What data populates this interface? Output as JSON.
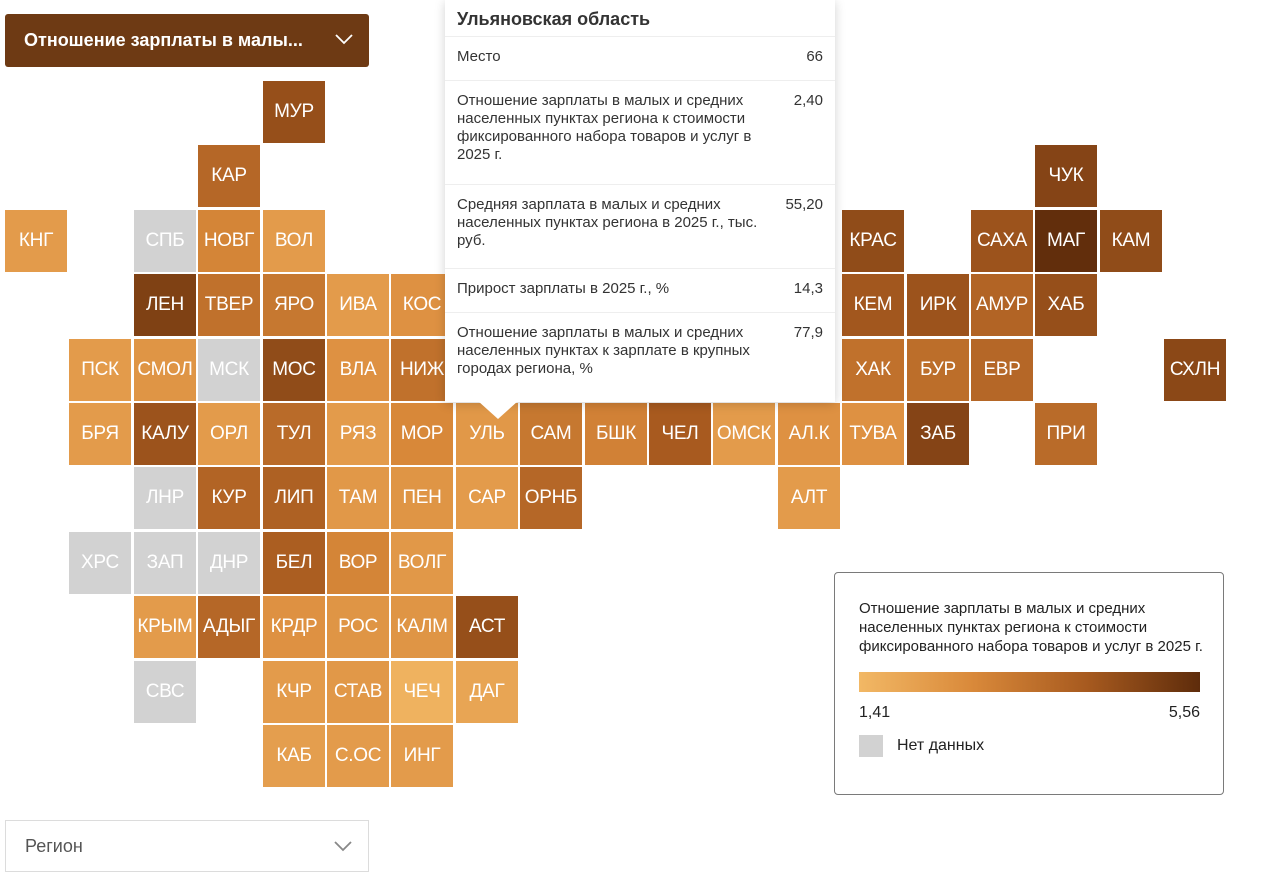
{
  "metric_selector": {
    "label": "Отношение зарплаты в малы...",
    "icon": "chevron-down-icon"
  },
  "region_selector": {
    "label": "Регион",
    "icon": "chevron-down-icon"
  },
  "colors": {
    "low": "#f2b865",
    "high": "#5e2c0b",
    "no_data": "#d2d2d2"
  },
  "map": {
    "tiles": [
      {
        "label": "МУР",
        "col": 4,
        "row": 0,
        "value": 4.6
      },
      {
        "label": "КАР",
        "col": 3,
        "row": 1,
        "value": 3.9
      },
      {
        "label": "ЧУК",
        "col": 16,
        "row": 1,
        "value": 4.9
      },
      {
        "label": "КНГ",
        "col": 0,
        "row": 2,
        "value": 2.3
      },
      {
        "label": "СПБ",
        "col": 2,
        "row": 2,
        "value": null
      },
      {
        "label": "НОВГ",
        "col": 3,
        "row": 2,
        "value": 3.0
      },
      {
        "label": "ВОЛ",
        "col": 4,
        "row": 2,
        "value": 2.3
      },
      {
        "label": "КРАС",
        "col": 13,
        "row": 2,
        "value": 4.7
      },
      {
        "label": "САХА",
        "col": 15,
        "row": 2,
        "value": 4.5
      },
      {
        "label": "МАГ",
        "col": 16,
        "row": 2,
        "value": 5.5
      },
      {
        "label": "КАМ",
        "col": 17,
        "row": 2,
        "value": 4.7
      },
      {
        "label": "ЛЕН",
        "col": 2,
        "row": 3,
        "value": 5.0
      },
      {
        "label": "ТВЕР",
        "col": 3,
        "row": 3,
        "value": 3.6
      },
      {
        "label": "ЯРО",
        "col": 4,
        "row": 3,
        "value": 3.4
      },
      {
        "label": "ИВА",
        "col": 5,
        "row": 3,
        "value": 2.3
      },
      {
        "label": "КОС",
        "col": 6,
        "row": 3,
        "value": 2.6
      },
      {
        "label": "КЕМ",
        "col": 13,
        "row": 3,
        "value": 4.4
      },
      {
        "label": "ИРК",
        "col": 14,
        "row": 3,
        "value": 4.5
      },
      {
        "label": "АМУР",
        "col": 15,
        "row": 3,
        "value": 4.0
      },
      {
        "label": "ХАБ",
        "col": 16,
        "row": 3,
        "value": 4.6
      },
      {
        "label": "ПСК",
        "col": 1,
        "row": 4,
        "value": 2.3
      },
      {
        "label": "СМОЛ",
        "col": 2,
        "row": 4,
        "value": 2.5
      },
      {
        "label": "МСК",
        "col": 3,
        "row": 4,
        "value": null
      },
      {
        "label": "МОС",
        "col": 4,
        "row": 4,
        "value": 4.7
      },
      {
        "label": "ВЛА",
        "col": 5,
        "row": 4,
        "value": 2.6
      },
      {
        "label": "НИЖ",
        "col": 6,
        "row": 4,
        "value": 3.6
      },
      {
        "label": "ХАК",
        "col": 13,
        "row": 4,
        "value": 3.6
      },
      {
        "label": "БУР",
        "col": 14,
        "row": 4,
        "value": 3.7
      },
      {
        "label": "ЕВР",
        "col": 15,
        "row": 4,
        "value": 3.9
      },
      {
        "label": "СХЛН",
        "col": 18,
        "row": 4,
        "value": 4.8
      },
      {
        "label": "БРЯ",
        "col": 1,
        "row": 5,
        "value": 2.3
      },
      {
        "label": "КАЛУ",
        "col": 2,
        "row": 5,
        "value": 4.5
      },
      {
        "label": "ОРЛ",
        "col": 3,
        "row": 5,
        "value": 2.3
      },
      {
        "label": "ТУЛ",
        "col": 4,
        "row": 5,
        "value": 3.8
      },
      {
        "label": "РЯЗ",
        "col": 5,
        "row": 5,
        "value": 2.3
      },
      {
        "label": "МОР",
        "col": 6,
        "row": 5,
        "value": 2.9
      },
      {
        "label": "УЛЬ",
        "col": 7,
        "row": 5,
        "value": 2.4
      },
      {
        "label": "САМ",
        "col": 8,
        "row": 5,
        "value": 3.4
      },
      {
        "label": "БШК",
        "col": 9,
        "row": 5,
        "value": 3.1
      },
      {
        "label": "ЧЕЛ",
        "col": 10,
        "row": 5,
        "value": 4.3
      },
      {
        "label": "ОМСК",
        "col": 11,
        "row": 5,
        "value": 2.3
      },
      {
        "label": "АЛ.К",
        "col": 12,
        "row": 5,
        "value": 2.6
      },
      {
        "label": "ТУВА",
        "col": 13,
        "row": 5,
        "value": 2.6
      },
      {
        "label": "ЗАБ",
        "col": 14,
        "row": 5,
        "value": 4.9
      },
      {
        "label": "ПРИ",
        "col": 16,
        "row": 5,
        "value": 3.8
      },
      {
        "label": "ЛНР",
        "col": 2,
        "row": 6,
        "value": null
      },
      {
        "label": "КУР",
        "col": 3,
        "row": 6,
        "value": 4.0
      },
      {
        "label": "ЛИП",
        "col": 4,
        "row": 6,
        "value": 4.1
      },
      {
        "label": "ТАМ",
        "col": 5,
        "row": 6,
        "value": 2.4
      },
      {
        "label": "ПЕН",
        "col": 6,
        "row": 6,
        "value": 2.5
      },
      {
        "label": "САР",
        "col": 7,
        "row": 6,
        "value": 2.3
      },
      {
        "label": "ОРНБ",
        "col": 8,
        "row": 6,
        "value": 3.9
      },
      {
        "label": "АЛТ",
        "col": 12,
        "row": 6,
        "value": 2.3
      },
      {
        "label": "ХРС",
        "col": 1,
        "row": 7,
        "value": null
      },
      {
        "label": "ЗАП",
        "col": 2,
        "row": 7,
        "value": null
      },
      {
        "label": "ДНР",
        "col": 3,
        "row": 7,
        "value": null
      },
      {
        "label": "БЕЛ",
        "col": 4,
        "row": 7,
        "value": 4.2
      },
      {
        "label": "ВОР",
        "col": 5,
        "row": 7,
        "value": 3.0
      },
      {
        "label": "ВОЛГ",
        "col": 6,
        "row": 7,
        "value": 2.4
      },
      {
        "label": "КРЫМ",
        "col": 2,
        "row": 8,
        "value": 2.3
      },
      {
        "label": "АДЫГ",
        "col": 3,
        "row": 8,
        "value": 3.9
      },
      {
        "label": "КРДР",
        "col": 4,
        "row": 8,
        "value": 2.6
      },
      {
        "label": "РОС",
        "col": 5,
        "row": 8,
        "value": 2.5
      },
      {
        "label": "КАЛМ",
        "col": 6,
        "row": 8,
        "value": 2.5
      },
      {
        "label": "АСТ",
        "col": 7,
        "row": 8,
        "value": 4.6
      },
      {
        "label": "СВС",
        "col": 2,
        "row": 9,
        "value": null
      },
      {
        "label": "КЧР",
        "col": 4,
        "row": 9,
        "value": 2.3
      },
      {
        "label": "СТАВ",
        "col": 5,
        "row": 9,
        "value": 2.4
      },
      {
        "label": "ЧЕЧ",
        "col": 6,
        "row": 9,
        "value": 1.6
      },
      {
        "label": "ДАГ",
        "col": 7,
        "row": 9,
        "value": 2.0
      },
      {
        "label": "КАБ",
        "col": 4,
        "row": 10,
        "value": 2.2
      },
      {
        "label": "С.ОС",
        "col": 5,
        "row": 10,
        "value": 2.3
      },
      {
        "label": "ИНГ",
        "col": 6,
        "row": 10,
        "value": 2.3
      }
    ]
  },
  "tooltip": {
    "title": "Ульяновская область",
    "rows": [
      {
        "label": "Место",
        "value": "66"
      },
      {
        "label": "Отношение зарплаты в малых и средних населенных пунктах региона к стоимости фиксированного набора товаров и услуг в 2025 г.",
        "value": "2,40"
      },
      {
        "label": "Средняя зарплата в малых и средних населенных пунктах региона в 2025 г., тыс. руб.",
        "value": "55,20"
      },
      {
        "label": "Прирост зарплаты в 2025 г., %",
        "value": "14,3"
      },
      {
        "label": "Отношение зарплаты в малых и средних населенных пунктах к зарплате в крупных городах региона, %",
        "value": "77,9"
      }
    ]
  },
  "legend": {
    "title": "Отношение зарплаты в малых и средних населенных пунктах региона к стоимости фиксированного набора товаров и услуг в 2025 г.",
    "min_label": "1,41",
    "max_label": "5,56",
    "min": 1.41,
    "max": 5.56,
    "no_data_label": "Нет данных"
  }
}
